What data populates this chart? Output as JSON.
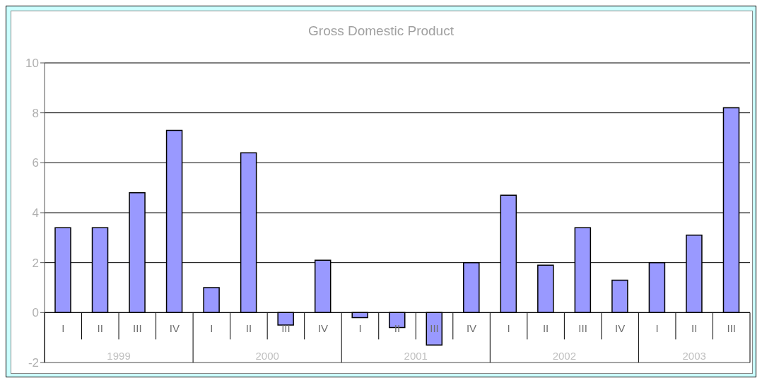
{
  "chart_data": {
    "type": "bar",
    "title": "Gross Domestic Product",
    "categories": [
      "I",
      "II",
      "III",
      "IV",
      "I",
      "II",
      "III",
      "IV",
      "I",
      "II",
      "III",
      "IV",
      "I",
      "II",
      "III",
      "IV",
      "I",
      "II",
      "III"
    ],
    "values": [
      3.4,
      3.4,
      4.8,
      7.3,
      1.0,
      6.4,
      -0.5,
      2.1,
      -0.2,
      -0.6,
      -1.3,
      2.0,
      4.7,
      1.9,
      3.4,
      1.3,
      2.0,
      3.1,
      8.2
    ],
    "color": "#9999ff",
    "annotations": [
      "1999",
      "2000",
      "2001",
      "2002",
      "2003"
    ],
    "ylim": [
      -2,
      10
    ],
    "yticks": [
      -2,
      0,
      2,
      4,
      6,
      8,
      10
    ],
    "grid": "y",
    "legend": false
  }
}
